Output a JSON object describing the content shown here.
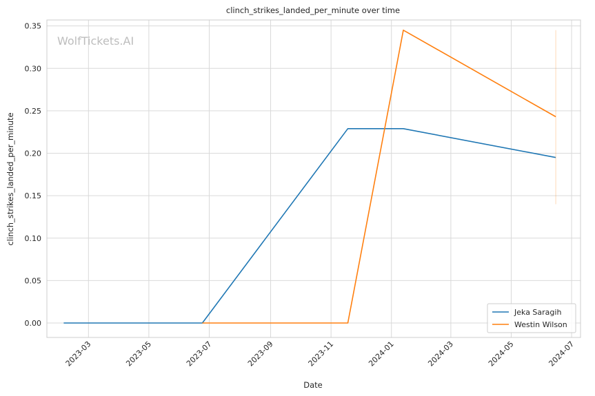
{
  "chart_data": {
    "type": "line",
    "title": "clinch_strikes_landed_per_minute over time",
    "xlabel": "Date",
    "ylabel": "clinch_strikes_landed_per_minute",
    "watermark": "WolfTickets.AI",
    "x_ticks": [
      "2023-03",
      "2023-05",
      "2023-07",
      "2023-09",
      "2023-11",
      "2024-01",
      "2024-03",
      "2024-05",
      "2024-07"
    ],
    "y_ticks": [
      "0.00",
      "0.05",
      "0.10",
      "0.15",
      "0.20",
      "0.25",
      "0.30",
      "0.35"
    ],
    "xlim": [
      "2023-01-18",
      "2024-07-10"
    ],
    "ylim": [
      -0.017,
      0.357
    ],
    "grid": true,
    "legend_position": "lower-right",
    "series": [
      {
        "name": "Jeka Saragih",
        "color": "#1f77b4",
        "points": [
          {
            "x": "2023-02-04",
            "y": 0.0
          },
          {
            "x": "2023-06-24",
            "y": 0.0
          },
          {
            "x": "2023-11-18",
            "y": 0.229
          },
          {
            "x": "2024-01-13",
            "y": 0.229
          },
          {
            "x": "2024-06-15",
            "y": 0.195
          }
        ]
      },
      {
        "name": "Westin Wilson",
        "color": "#ff7f0e",
        "points": [
          {
            "x": "2023-06-24",
            "y": 0.0
          },
          {
            "x": "2023-11-18",
            "y": 0.0
          },
          {
            "x": "2024-01-13",
            "y": 0.345
          },
          {
            "x": "2024-06-15",
            "y": 0.243
          }
        ],
        "error_bar": {
          "x": "2024-06-15",
          "low": 0.14,
          "high": 0.345
        }
      }
    ]
  }
}
